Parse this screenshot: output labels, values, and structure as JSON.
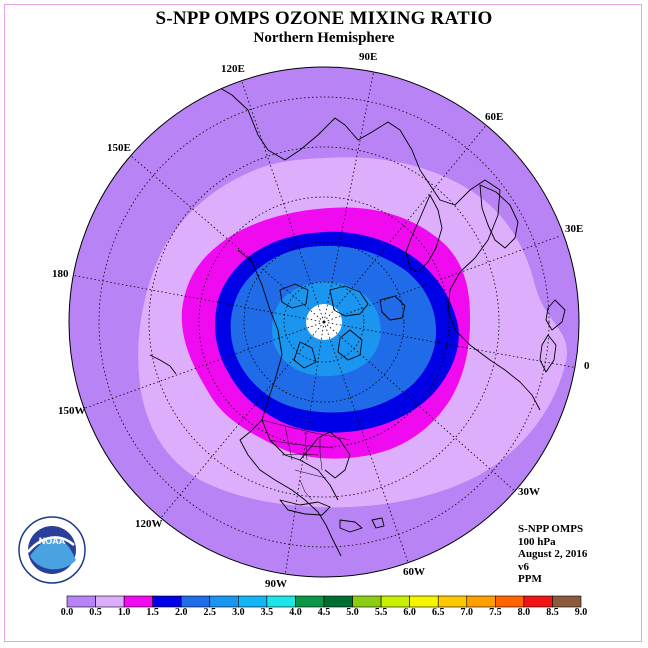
{
  "title": "S-NPP OMPS OZONE MIXING RATIO",
  "subtitle": "Northern Hemisphere",
  "longitude_labels": [
    "120E",
    "90E",
    "60E",
    "150E",
    "30E",
    "180",
    "0",
    "150W",
    "30W",
    "120W",
    "60W",
    "90W"
  ],
  "info": {
    "instrument": "S-NPP OMPS",
    "level": "100 hPa",
    "date": "August 2, 2016",
    "version": "v6",
    "units": "PPM"
  },
  "colorbar": {
    "labels": [
      "0.0",
      "0.5",
      "1.0",
      "1.5",
      "2.0",
      "2.5",
      "3.0",
      "3.5",
      "4.0",
      "4.5",
      "5.0",
      "5.5",
      "6.0",
      "6.5",
      "7.0",
      "7.5",
      "8.0",
      "8.5",
      "9.0"
    ],
    "colors": [
      "#b883f5",
      "#dcaefc",
      "#f00af0",
      "#0000e6",
      "#1f6be8",
      "#1a96f0",
      "#14b4f5",
      "#1ee6e6",
      "#0a9646",
      "#006e32",
      "#8ccd14",
      "#c8f000",
      "#f5f500",
      "#ffc800",
      "#ffa000",
      "#ff6400",
      "#f01414",
      "#8c5a3c"
    ]
  },
  "map_fill_colors": {
    "outer": "#b883f5",
    "mid": "#dcaefc",
    "magenta": "#f00af0",
    "dark_blue": "#0000e6",
    "blue": "#1f6be8",
    "light_blue": "#1a96f0",
    "pole_gap": "#ffffff"
  }
}
